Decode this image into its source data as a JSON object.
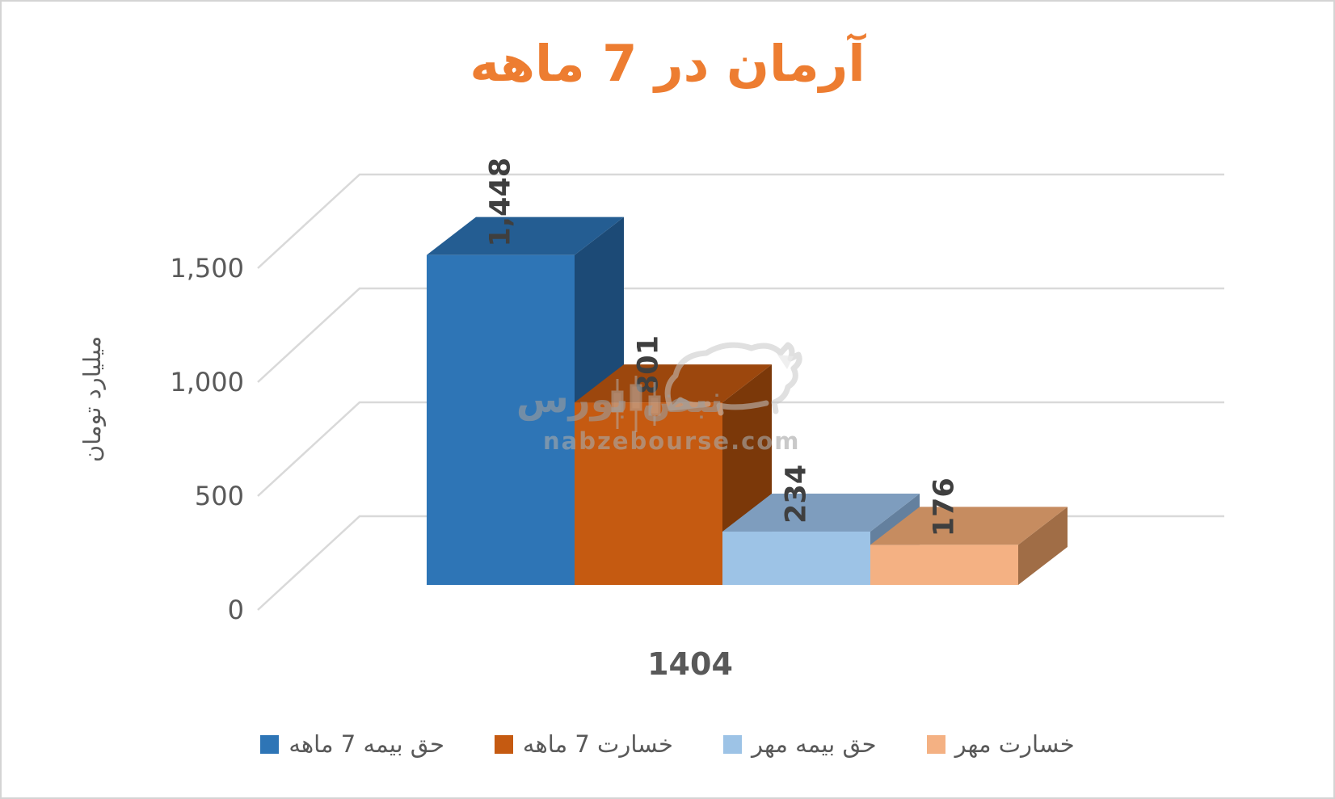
{
  "title": {
    "text": "آرمان در 7 ماهه",
    "color": "#ED7D31"
  },
  "chart_data": {
    "type": "bar",
    "projection": "3d",
    "categories": [
      "1404"
    ],
    "series": [
      {
        "name": "حق بیمه  7 ماهه",
        "values": [
          1448
        ],
        "data_label": "1,448",
        "color": "#2E75B6",
        "color_top": "#245D92",
        "color_side": "#1C4A76"
      },
      {
        "name": "خسارت 7 ماهه",
        "values": [
          801
        ],
        "data_label": "801",
        "color": "#C55A11",
        "color_top": "#9C470D",
        "color_side": "#7B3809"
      },
      {
        "name": "حق بیمه مهر",
        "values": [
          234
        ],
        "data_label": "234",
        "color": "#9DC3E6",
        "color_top": "#7E9DBE",
        "color_side": "#64809E"
      },
      {
        "name": "خسارت مهر",
        "values": [
          176
        ],
        "data_label": "176",
        "color": "#F4B183",
        "color_top": "#C68C60",
        "color_side": "#A06D46"
      }
    ],
    "xlabel": "",
    "ylabel": "میلیارد تومان",
    "ylim": [
      0,
      1500
    ],
    "yticks": [
      {
        "value": 0,
        "label": "0"
      },
      {
        "value": 500,
        "label": "500"
      },
      {
        "value": 1000,
        "label": "1,000"
      },
      {
        "value": 1500,
        "label": "1,500"
      }
    ],
    "grid": true,
    "legend_position": "bottom",
    "gridline_color": "#D9D9D9",
    "axis_text_color": "#595959",
    "data_label_color": "#3F3F3F"
  },
  "watermark": {
    "brand_fa": "نبض بورس",
    "domain": "nabzebourse.com"
  }
}
